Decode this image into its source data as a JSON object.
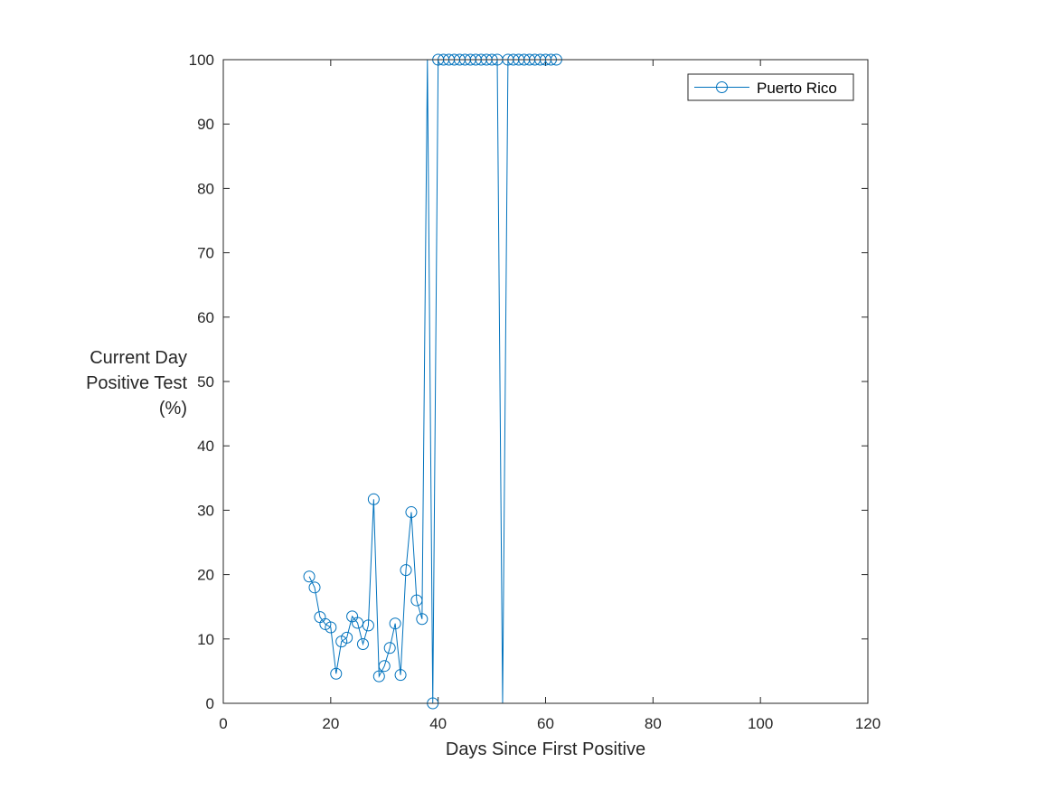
{
  "chart_data": {
    "type": "line",
    "title": "",
    "xlabel": "Days Since First Positive",
    "ylabel_lines": [
      "Current Day",
      "Positive Test",
      "(%)"
    ],
    "xlim": [
      0,
      120
    ],
    "ylim": [
      0,
      100
    ],
    "xticks": [
      0,
      20,
      40,
      60,
      80,
      100,
      120
    ],
    "yticks": [
      0,
      10,
      20,
      30,
      40,
      50,
      60,
      70,
      80,
      90,
      100
    ],
    "grid": false,
    "legend_position": "top-right",
    "series": [
      {
        "name": "Puerto Rico",
        "color": "#0072BD",
        "marker": "circle",
        "x": [
          16,
          17,
          18,
          19,
          20,
          21,
          22,
          23,
          24,
          25,
          26,
          27,
          28,
          29,
          30,
          31,
          32,
          33,
          34,
          35,
          36,
          37,
          38,
          39,
          40,
          41,
          42,
          43,
          44,
          45,
          46,
          47,
          48,
          49,
          50,
          51,
          52,
          53,
          54,
          55,
          56,
          57,
          58,
          59,
          60,
          61,
          62
        ],
        "y": [
          19.7,
          18.0,
          13.4,
          12.3,
          11.8,
          4.6,
          9.6,
          10.2,
          13.5,
          12.5,
          9.2,
          12.1,
          31.7,
          4.2,
          5.8,
          8.6,
          12.4,
          4.4,
          20.7,
          29.7,
          16.0,
          13.1,
          100,
          0,
          100,
          100,
          100,
          100,
          100,
          100,
          100,
          100,
          100,
          100,
          100,
          100,
          0,
          100,
          100,
          100,
          100,
          100,
          100,
          100,
          100,
          100,
          100
        ],
        "marker_shown": [
          true,
          true,
          true,
          true,
          true,
          true,
          true,
          true,
          true,
          true,
          true,
          true,
          true,
          true,
          true,
          true,
          true,
          true,
          true,
          true,
          true,
          true,
          false,
          true,
          true,
          true,
          true,
          true,
          true,
          true,
          true,
          true,
          true,
          true,
          true,
          true,
          false,
          true,
          true,
          true,
          true,
          true,
          true,
          true,
          true,
          true,
          true
        ]
      }
    ]
  }
}
